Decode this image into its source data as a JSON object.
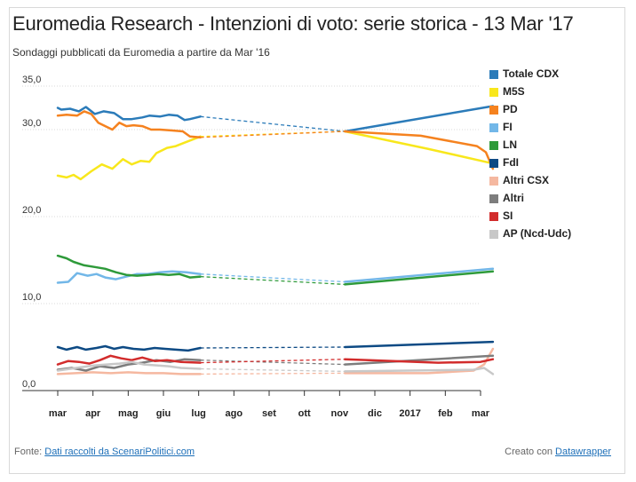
{
  "title": "Euromedia Research - Intenzioni di voto: serie storica - 13 Mar '17",
  "subtitle": "Sondaggi pubblicati da Euromedia a partire da Mar '16",
  "footer": {
    "source_prefix": "Fonte:",
    "source_link": "Dati raccolti da ScenariPolitici.com",
    "credit_prefix": "Creato con",
    "credit_link": "Datawrapper"
  },
  "chart_data": {
    "type": "line",
    "x_ticks": [
      "mar",
      "apr",
      "mag",
      "giu",
      "lug",
      "ago",
      "set",
      "ott",
      "nov",
      "dic",
      "2017",
      "feb",
      "mar"
    ],
    "y_ticks": [
      "0,0",
      "10,0",
      "20,0",
      "30,0",
      "35,0"
    ],
    "ylim": [
      0,
      35
    ],
    "grid": true,
    "legend_position": "right",
    "series": [
      {
        "name": "Totale CDX",
        "color": "#2b7bb9",
        "early": [
          [
            0,
            32.5
          ],
          [
            0.1,
            32.3
          ],
          [
            0.35,
            32.4
          ],
          [
            0.6,
            32.1
          ],
          [
            0.8,
            32.6
          ],
          [
            1.05,
            31.8
          ],
          [
            1.3,
            32.1
          ],
          [
            1.6,
            31.9
          ],
          [
            1.85,
            31.2
          ],
          [
            2.1,
            31.2
          ],
          [
            2.4,
            31.4
          ],
          [
            2.6,
            31.6
          ],
          [
            2.9,
            31.5
          ],
          [
            3.15,
            31.7
          ],
          [
            3.4,
            31.6
          ],
          [
            3.6,
            31.1
          ],
          [
            3.75,
            31.2
          ],
          [
            4.05,
            31.5
          ]
        ],
        "late": [
          [
            8.15,
            29.8
          ],
          [
            12.35,
            32.7
          ]
        ]
      },
      {
        "name": "M5S",
        "color": "#f8e71c",
        "early": [
          [
            0,
            24.7
          ],
          [
            0.25,
            24.5
          ],
          [
            0.45,
            24.8
          ],
          [
            0.65,
            24.3
          ],
          [
            0.95,
            25.2
          ],
          [
            1.25,
            26.0
          ],
          [
            1.55,
            25.5
          ],
          [
            1.85,
            26.6
          ],
          [
            2.1,
            26.0
          ],
          [
            2.35,
            26.4
          ],
          [
            2.6,
            26.3
          ],
          [
            2.8,
            27.3
          ],
          [
            3.1,
            27.9
          ],
          [
            3.35,
            28.1
          ],
          [
            3.6,
            28.5
          ],
          [
            4.05,
            29.2
          ]
        ],
        "late": [
          [
            8.15,
            29.8
          ],
          [
            10.5,
            27.8
          ],
          [
            12.35,
            26.1
          ]
        ]
      },
      {
        "name": "PD",
        "color": "#f5821f",
        "early": [
          [
            0,
            31.6
          ],
          [
            0.25,
            31.7
          ],
          [
            0.55,
            31.6
          ],
          [
            0.75,
            32.1
          ],
          [
            0.95,
            31.8
          ],
          [
            1.15,
            30.8
          ],
          [
            1.35,
            30.4
          ],
          [
            1.55,
            30.0
          ],
          [
            1.75,
            30.8
          ],
          [
            1.95,
            30.4
          ],
          [
            2.15,
            30.5
          ],
          [
            2.4,
            30.4
          ],
          [
            2.65,
            30.0
          ],
          [
            2.9,
            30.0
          ],
          [
            3.25,
            29.9
          ],
          [
            3.55,
            29.8
          ],
          [
            3.75,
            29.2
          ],
          [
            4.05,
            29.1
          ]
        ],
        "late": [
          [
            8.15,
            29.8
          ],
          [
            10.3,
            29.3
          ],
          [
            11.9,
            28.1
          ],
          [
            12.15,
            27.4
          ],
          [
            12.35,
            25.5
          ]
        ]
      },
      {
        "name": "FI",
        "color": "#72b7e8",
        "early": [
          [
            0,
            12.4
          ],
          [
            0.3,
            12.5
          ],
          [
            0.55,
            13.5
          ],
          [
            0.85,
            13.2
          ],
          [
            1.1,
            13.4
          ],
          [
            1.35,
            13.0
          ],
          [
            1.65,
            12.8
          ],
          [
            1.95,
            13.1
          ],
          [
            2.25,
            13.4
          ],
          [
            2.55,
            13.4
          ],
          [
            2.9,
            13.6
          ],
          [
            3.25,
            13.7
          ],
          [
            3.65,
            13.6
          ],
          [
            4.05,
            13.4
          ]
        ],
        "late": [
          [
            8.15,
            12.5
          ],
          [
            12.35,
            14.0
          ]
        ]
      },
      {
        "name": "LN",
        "color": "#2e9a3a",
        "early": [
          [
            0,
            15.5
          ],
          [
            0.25,
            15.2
          ],
          [
            0.45,
            14.8
          ],
          [
            0.75,
            14.4
          ],
          [
            1.05,
            14.2
          ],
          [
            1.35,
            14.0
          ],
          [
            1.65,
            13.6
          ],
          [
            1.95,
            13.3
          ],
          [
            2.25,
            13.2
          ],
          [
            2.55,
            13.3
          ],
          [
            2.85,
            13.4
          ],
          [
            3.15,
            13.3
          ],
          [
            3.45,
            13.4
          ],
          [
            3.75,
            13.0
          ],
          [
            4.05,
            13.1
          ]
        ],
        "late": [
          [
            8.15,
            12.2
          ],
          [
            12.35,
            13.7
          ]
        ]
      },
      {
        "name": "FdI",
        "color": "#0d4a84",
        "early": [
          [
            0,
            5.0
          ],
          [
            0.25,
            4.7
          ],
          [
            0.55,
            5.0
          ],
          [
            0.8,
            4.7
          ],
          [
            1.1,
            4.9
          ],
          [
            1.35,
            5.1
          ],
          [
            1.6,
            4.8
          ],
          [
            1.85,
            5.0
          ],
          [
            2.15,
            4.8
          ],
          [
            2.45,
            4.7
          ],
          [
            2.75,
            4.9
          ],
          [
            3.05,
            4.8
          ],
          [
            3.35,
            4.7
          ],
          [
            3.7,
            4.6
          ],
          [
            4.05,
            4.9
          ]
        ],
        "late": [
          [
            8.15,
            5.0
          ],
          [
            12.35,
            5.6
          ]
        ]
      },
      {
        "name": "Altri CSX",
        "color": "#f5b8a0",
        "early": [
          [
            0,
            1.9
          ],
          [
            0.5,
            2.0
          ],
          [
            1.0,
            2.1
          ],
          [
            1.5,
            2.0
          ],
          [
            2.0,
            2.1
          ],
          [
            2.5,
            2.0
          ],
          [
            3.0,
            2.0
          ],
          [
            3.5,
            1.9
          ],
          [
            4.05,
            1.9
          ]
        ],
        "late": [
          [
            8.15,
            2.0
          ],
          [
            10.5,
            2.0
          ],
          [
            11.8,
            2.3
          ],
          [
            12.1,
            3.0
          ],
          [
            12.35,
            4.8
          ]
        ]
      },
      {
        "name": "Altri",
        "color": "#7d7d7d",
        "early": [
          [
            0,
            2.4
          ],
          [
            0.4,
            2.6
          ],
          [
            0.8,
            2.3
          ],
          [
            1.2,
            2.8
          ],
          [
            1.6,
            2.6
          ],
          [
            2.0,
            3.0
          ],
          [
            2.4,
            3.2
          ],
          [
            2.8,
            3.5
          ],
          [
            3.2,
            3.3
          ],
          [
            3.6,
            3.6
          ],
          [
            4.05,
            3.5
          ]
        ],
        "late": [
          [
            8.15,
            3.0
          ],
          [
            12.35,
            4.0
          ]
        ]
      },
      {
        "name": "SI",
        "color": "#d22c2c",
        "early": [
          [
            0,
            3.0
          ],
          [
            0.3,
            3.4
          ],
          [
            0.6,
            3.3
          ],
          [
            0.9,
            3.1
          ],
          [
            1.2,
            3.5
          ],
          [
            1.5,
            4.0
          ],
          [
            1.8,
            3.7
          ],
          [
            2.1,
            3.5
          ],
          [
            2.4,
            3.8
          ],
          [
            2.75,
            3.4
          ],
          [
            3.1,
            3.5
          ],
          [
            3.5,
            3.3
          ],
          [
            4.05,
            3.2
          ]
        ],
        "late": [
          [
            8.15,
            3.6
          ],
          [
            10.8,
            3.2
          ],
          [
            12.0,
            3.3
          ],
          [
            12.35,
            3.6
          ]
        ]
      },
      {
        "name": "AP (Ncd-Udc)",
        "color": "#c8c8c8",
        "early": [
          [
            0,
            2.3
          ],
          [
            0.35,
            2.5
          ],
          [
            0.7,
            2.7
          ],
          [
            1.05,
            2.9
          ],
          [
            1.4,
            3.0
          ],
          [
            1.75,
            3.1
          ],
          [
            2.1,
            3.3
          ],
          [
            2.45,
            3.0
          ],
          [
            2.8,
            2.9
          ],
          [
            3.15,
            2.8
          ],
          [
            3.5,
            2.6
          ],
          [
            4.05,
            2.5
          ]
        ],
        "late": [
          [
            8.15,
            2.2
          ],
          [
            11.8,
            2.4
          ],
          [
            12.1,
            2.6
          ],
          [
            12.35,
            1.9
          ]
        ]
      }
    ]
  }
}
